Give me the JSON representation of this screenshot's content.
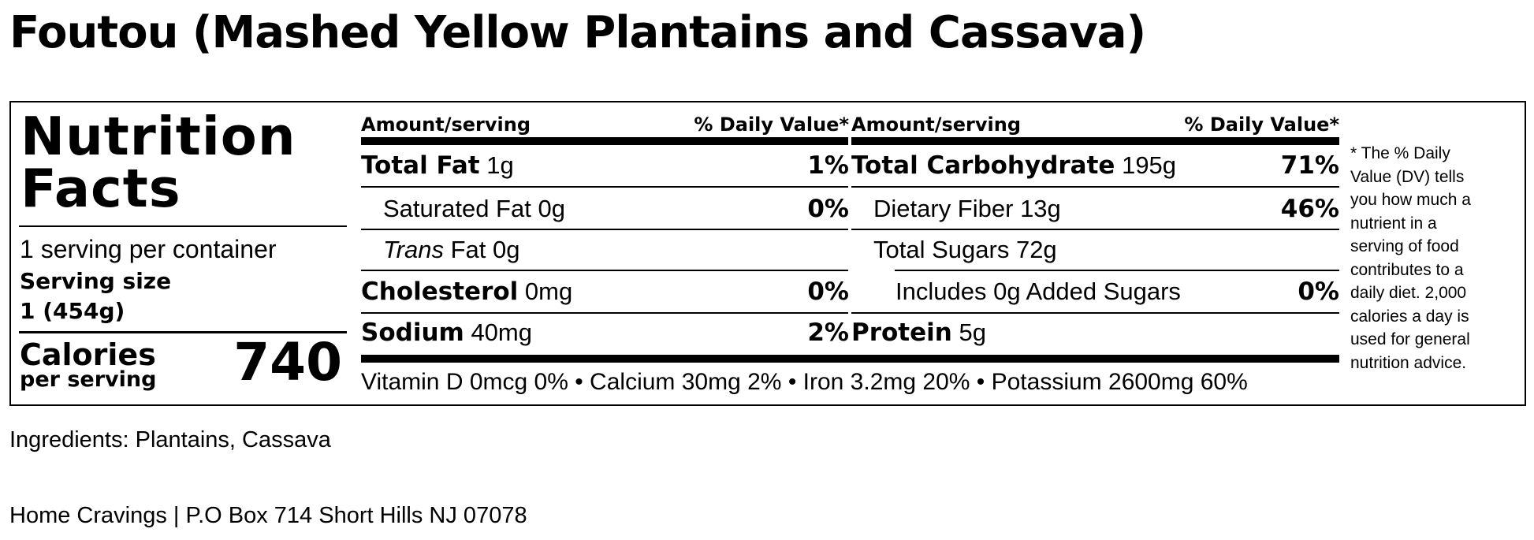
{
  "page": {
    "title": "Foutou (Mashed Yellow Plantains and Cassava)"
  },
  "label": {
    "heading_line1": "Nutrition",
    "heading_line2": "Facts",
    "servings_per_container": "1 serving per container",
    "serving_size_label": "Serving size",
    "serving_size_value": "1 (454g)",
    "calories_label": "Calories",
    "calories_sublabel": "per serving",
    "calories_value": "740",
    "col_header_amount": "Amount/serving",
    "col_header_dv": "% Daily Value*",
    "left_rows": [
      {
        "name": "Total Fat",
        "amount": "1g",
        "dv": "1%"
      },
      {
        "name": "Saturated Fat",
        "amount": "0g",
        "dv": "0%"
      },
      {
        "name": "Trans",
        "amount": "Fat 0g",
        "dv": ""
      },
      {
        "name": "Cholesterol",
        "amount": "0mg",
        "dv": "0%"
      },
      {
        "name": "Sodium",
        "amount": "40mg",
        "dv": "2%"
      }
    ],
    "right_rows": [
      {
        "name": "Total Carbohydrate",
        "amount": "195g",
        "dv": "71%"
      },
      {
        "name": "Dietary Fiber",
        "amount": "13g",
        "dv": "46%"
      },
      {
        "name": "Total Sugars",
        "amount": "72g",
        "dv": ""
      },
      {
        "name": "Includes 0g Added Sugars",
        "amount": "",
        "dv": "0%"
      },
      {
        "name": "Protein",
        "amount": "5g",
        "dv": ""
      }
    ],
    "vitamins": "Vitamin D 0mcg 0% • Calcium 30mg 2% • Iron 3.2mg 20% • Potassium 2600mg 60%",
    "footnote": "* The % Daily Value (DV) tells you how much a nutrient in a serving of food contributes to a daily diet. 2,000 calories a day is used for general nutrition advice."
  },
  "ingredients": "Ingredients: Plantains, Cassava",
  "company": "Home Cravings | P.O Box 714 Short Hills NJ 07078"
}
